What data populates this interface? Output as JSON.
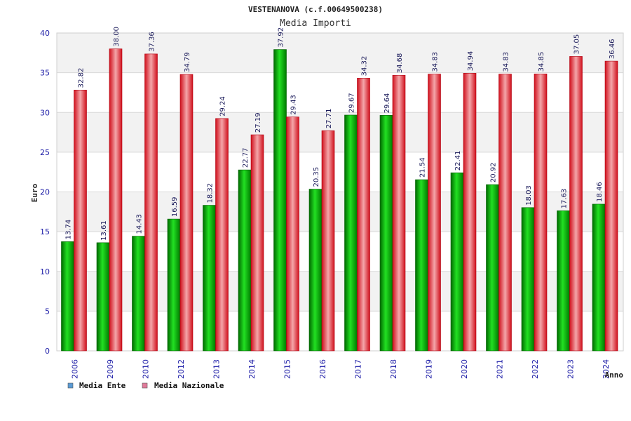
{
  "chart_data": {
    "type": "bar",
    "title": "VESTENANOVA (c.f.00649500238)",
    "subtitle": "Media Importi",
    "xlabel": "Anno",
    "ylabel": "Euro",
    "ylim": [
      0,
      40
    ],
    "yticks": [
      0,
      5,
      10,
      15,
      20,
      25,
      30,
      35,
      40
    ],
    "grid": true,
    "legend_position": "bottom-left",
    "categories": [
      "2006",
      "2009",
      "2010",
      "2012",
      "2013",
      "2014",
      "2015",
      "2016",
      "2017",
      "2018",
      "2019",
      "2020",
      "2021",
      "2022",
      "2023",
      "2024"
    ],
    "series": [
      {
        "name": "Media Ente",
        "bar_color": "#00b000",
        "legend_color": "#5b9bd5",
        "values": [
          13.74,
          13.61,
          14.43,
          16.59,
          18.32,
          22.77,
          37.92,
          20.35,
          29.67,
          29.64,
          21.54,
          22.41,
          20.92,
          18.03,
          17.63,
          18.46
        ],
        "labels": [
          "13.74",
          "13.61",
          "14.43",
          "16.59",
          "18.32",
          "22.77",
          "37.92",
          "20.35",
          "29.67",
          "29.64",
          "21.54",
          "22.41",
          "20.92",
          "18.03",
          "17.63",
          "18.46"
        ]
      },
      {
        "name": "Media Nazionale",
        "bar_color": "#e8202a",
        "legend_color": "#e07a9a",
        "values": [
          32.82,
          38.0,
          37.36,
          34.79,
          29.24,
          27.19,
          29.43,
          27.71,
          34.32,
          34.68,
          34.83,
          34.94,
          34.83,
          34.85,
          37.05,
          36.46
        ],
        "labels": [
          "32.82",
          "38.00",
          "37.36",
          "34.79",
          "29.24",
          "27.19",
          "29.43",
          "27.71",
          "34.32",
          "34.68",
          "34.83",
          "34.94",
          "34.83",
          "34.85",
          "37.05",
          "36.46"
        ]
      }
    ]
  }
}
